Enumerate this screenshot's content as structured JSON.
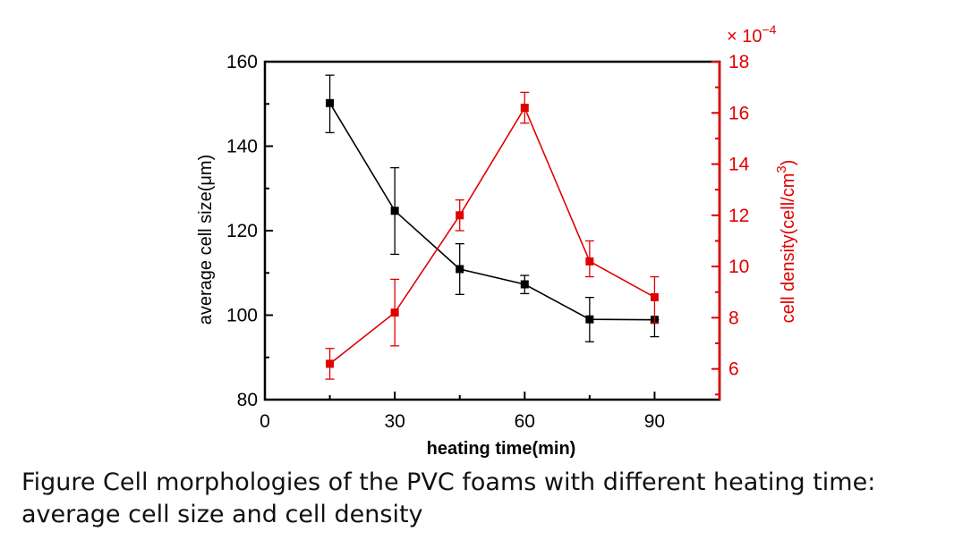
{
  "chart_data": {
    "type": "line",
    "x_axis": {
      "label": "heating time(min)",
      "range": [
        0,
        105
      ],
      "ticks": [
        0,
        30,
        60,
        90
      ],
      "tick_labels": [
        "0",
        "30",
        "60",
        "90"
      ]
    },
    "y_left": {
      "label": "average cell size(μm)",
      "range": [
        80,
        160
      ],
      "ticks": [
        80,
        100,
        120,
        140,
        160
      ],
      "tick_labels": [
        "80",
        "100",
        "120",
        "140",
        "160"
      ],
      "color": "#000000"
    },
    "y_right": {
      "label": "cell density(cell/cm",
      "label_sup": "3",
      "label_tail": ")",
      "range": [
        4.8,
        18
      ],
      "ticks": [
        6,
        8,
        10,
        12,
        14,
        16,
        18
      ],
      "tick_labels": [
        "6",
        "8",
        "10",
        "12",
        "14",
        "16",
        "18"
      ],
      "multiplier_base": "× 10",
      "multiplier_exp": "−4",
      "color": "#e00000"
    },
    "series": [
      {
        "name": "average cell size",
        "axis": "left",
        "color": "#000000",
        "marker": "square",
        "x": [
          15,
          30,
          45,
          60,
          75,
          90
        ],
        "y": [
          150.2,
          124.7,
          110.9,
          107.3,
          99.0,
          98.9
        ],
        "err_low": [
          7.0,
          10.3,
          6.0,
          2.2,
          5.3,
          4.0
        ],
        "err_high": [
          6.6,
          10.2,
          6.0,
          2.1,
          5.2,
          0.0
        ]
      },
      {
        "name": "cell density",
        "axis": "right",
        "color": "#e00000",
        "marker": "square",
        "x": [
          15,
          30,
          45,
          60,
          75,
          90
        ],
        "y": [
          6.2,
          8.2,
          12.0,
          16.2,
          10.2,
          8.8
        ],
        "err_low": [
          0.6,
          1.3,
          0.6,
          0.6,
          0.6,
          1.0
        ],
        "err_high": [
          0.6,
          1.3,
          0.6,
          0.6,
          0.8,
          0.8
        ]
      }
    ]
  },
  "caption": {
    "line1": "Figure Cell morphologies of the PVC foams with different heating time:",
    "line2": "average cell size and cell density"
  }
}
